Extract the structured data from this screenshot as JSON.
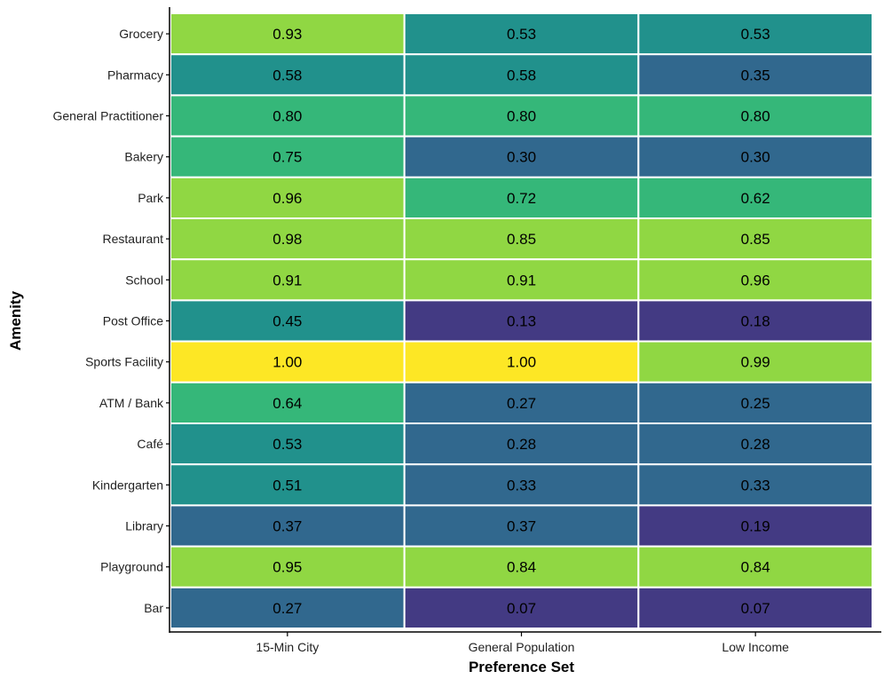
{
  "chart_data": {
    "type": "heatmap",
    "title": "",
    "xlabel": "Preference Set",
    "ylabel": "Amenity",
    "x": [
      "15-Min City",
      "General Population",
      "Low Income"
    ],
    "y": [
      "Grocery",
      "Pharmacy",
      "General Practitioner",
      "Bakery",
      "Park",
      "Restaurant",
      "School",
      "Post Office",
      "Sports Facility",
      "ATM / Bank",
      "Café",
      "Kindergarten",
      "Library",
      "Playground",
      "Bar"
    ],
    "values": [
      [
        "0.93",
        "0.53",
        "0.53"
      ],
      [
        "0.58",
        "0.58",
        "0.35"
      ],
      [
        "0.80",
        "0.80",
        "0.80"
      ],
      [
        "0.75",
        "0.30",
        "0.30"
      ],
      [
        "0.96",
        "0.72",
        "0.62"
      ],
      [
        "0.98",
        "0.85",
        "0.85"
      ],
      [
        "0.91",
        "0.91",
        "0.96"
      ],
      [
        "0.45",
        "0.13",
        "0.18"
      ],
      [
        "1.00",
        "1.00",
        "0.99"
      ],
      [
        "0.64",
        "0.27",
        "0.25"
      ],
      [
        "0.53",
        "0.28",
        "0.28"
      ],
      [
        "0.51",
        "0.33",
        "0.33"
      ],
      [
        "0.37",
        "0.37",
        "0.19"
      ],
      [
        "0.95",
        "0.84",
        "0.84"
      ],
      [
        "0.27",
        "0.07",
        "0.07"
      ]
    ],
    "color_scale": "viridis",
    "palette": {
      "low": "#433A83",
      "mid_low": "#31688E",
      "mid": "#21918C",
      "mid_high": "#35B779",
      "high": "#90D743",
      "max": "#FDE725"
    },
    "legend": "none",
    "grid": false
  }
}
